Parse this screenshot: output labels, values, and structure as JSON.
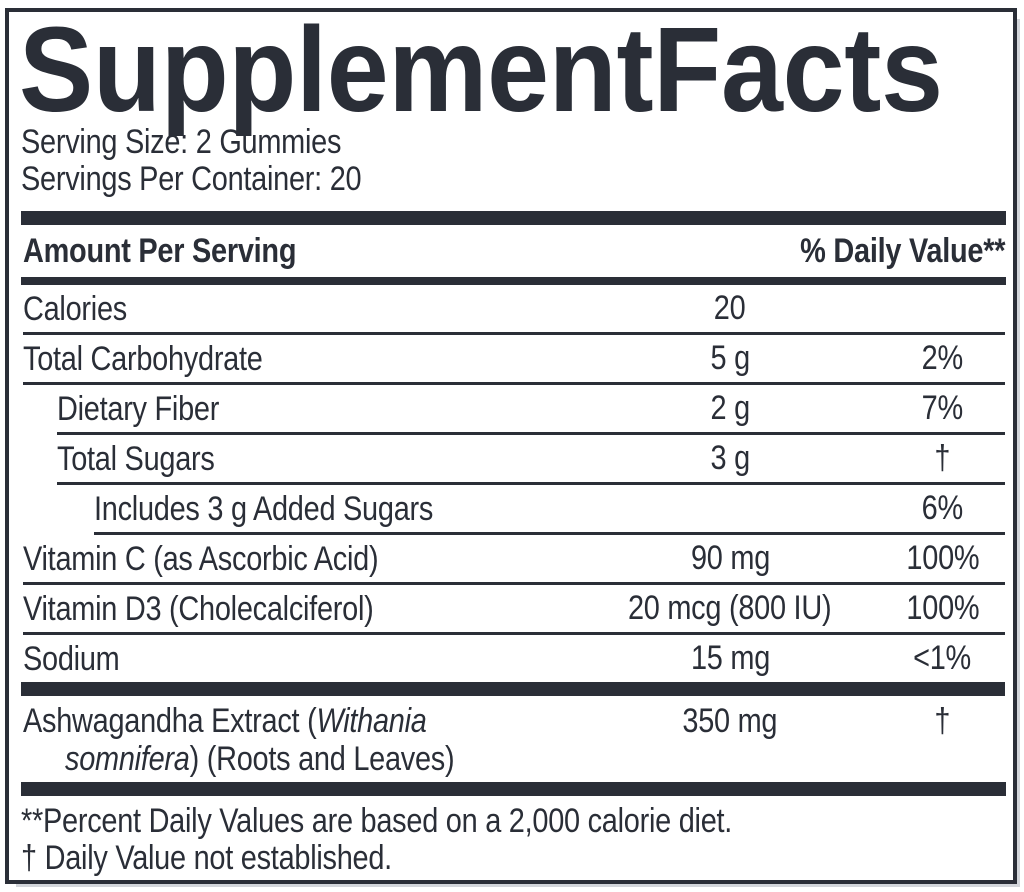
{
  "colors": {
    "ink": "#2a2e37",
    "paper": "#ffffff"
  },
  "title": "SupplementFacts",
  "serving": {
    "size": "Serving Size: 2 Gummies",
    "per_container": "Servings Per Container: 20"
  },
  "header": {
    "amount_label": "Amount Per Serving",
    "dv_label": "% Daily Value**"
  },
  "table": {
    "rows": [
      {
        "lines": [
          [
            {
              "t": "Calories"
            }
          ]
        ],
        "amount": "20",
        "dv": "",
        "indent": 0,
        "divider": "full"
      },
      {
        "lines": [
          [
            {
              "t": "Total Carbohydrate"
            }
          ]
        ],
        "amount": "5 g",
        "dv": "2%",
        "indent": 0,
        "divider": "full"
      },
      {
        "lines": [
          [
            {
              "t": "Dietary Fiber"
            }
          ]
        ],
        "amount": "2 g",
        "dv": "7%",
        "indent": 1,
        "divider": "sub"
      },
      {
        "lines": [
          [
            {
              "t": "Total Sugars"
            }
          ]
        ],
        "amount": "3 g",
        "dv": "†",
        "indent": 1,
        "divider": "sub"
      },
      {
        "lines": [
          [
            {
              "t": "Includes 3 g Added Sugars"
            }
          ]
        ],
        "amount": "",
        "dv": "6%",
        "indent": 2,
        "divider": "subsub"
      },
      {
        "lines": [
          [
            {
              "t": "Vitamin C (as Ascorbic Acid)"
            }
          ]
        ],
        "amount": "90 mg",
        "dv": "100%",
        "indent": 0,
        "divider": "full"
      },
      {
        "lines": [
          [
            {
              "t": "Vitamin D3 (Cholecalciferol)"
            }
          ]
        ],
        "amount": "20 mcg (800 IU)",
        "dv": "100%",
        "indent": 0,
        "divider": "full"
      },
      {
        "lines": [
          [
            {
              "t": "Sodium"
            }
          ]
        ],
        "amount": "15 mg",
        "dv": "<1%",
        "indent": 0,
        "divider": "none"
      },
      {
        "lines": [
          [
            {
              "t": "Ashwagandha Extract ("
            },
            {
              "t": "Withania",
              "i": true
            }
          ],
          [
            {
              "t": "somnifera",
              "i": true
            },
            {
              "t": ") (Roots and Leaves)"
            }
          ]
        ],
        "amount": "350 mg",
        "dv": "†",
        "indent": 0,
        "divider": "none",
        "thick_bar_above": true,
        "multiline": true
      }
    ]
  },
  "footnotes": [
    "**Percent Daily Values are based on a 2,000 calorie diet.",
    "† Daily Value not established."
  ]
}
